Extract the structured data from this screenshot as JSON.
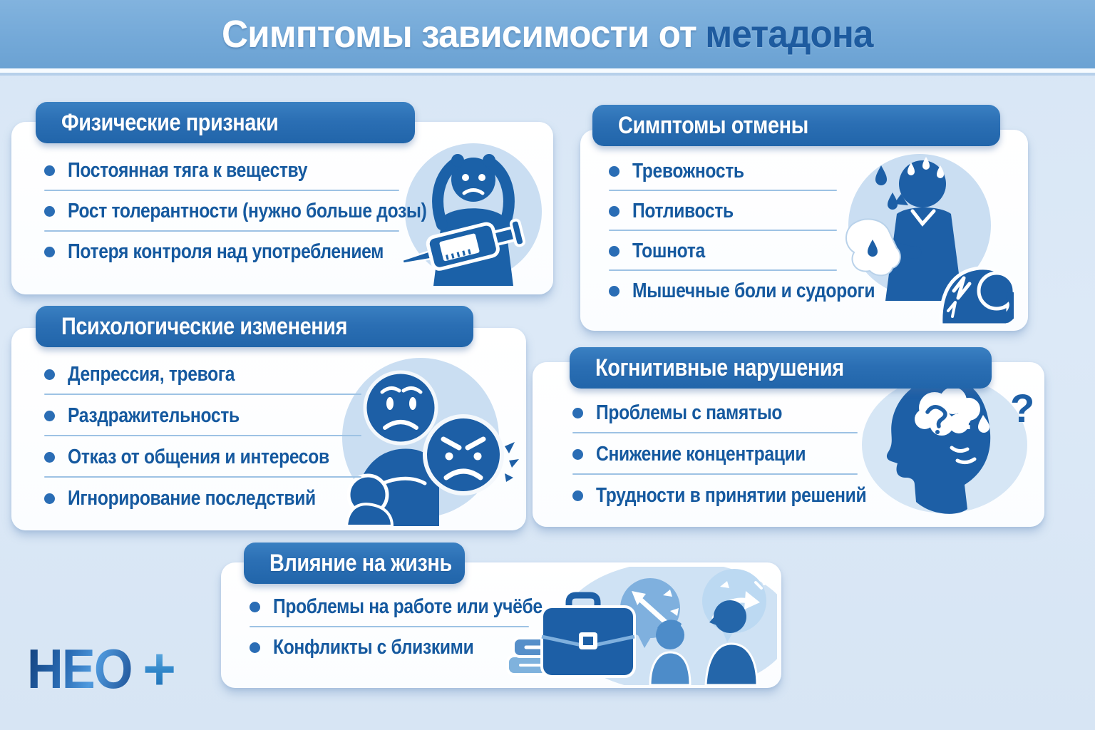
{
  "header": {
    "title_main": "Симптомы зависимости от",
    "title_accent": "метадона"
  },
  "cards": [
    {
      "title": "Физические признаки",
      "items": [
        "Постоянная тяга к веществу",
        "Рост толерантности (нужно больше дозы)",
        "Потеря контроля над употреблением"
      ],
      "icon": "person-clutching-head-with-syringe-icon"
    },
    {
      "title": "Симптомы отмены",
      "items": [
        "Тревожность",
        "Потливость",
        "Тошнота",
        "Мышечные боли и судороги"
      ],
      "icon": "sweating-nauseous-person-icon"
    },
    {
      "title": "Психологические изменения",
      "items": [
        "Депрессия, тревога",
        "Раздражительность",
        "Отказ от общения и интересов",
        "Игнорирование последствий"
      ],
      "icon": "sad-and-angry-faces-icon"
    },
    {
      "title": "Когнитивные нарушения",
      "items": [
        "Проблемы с памятыо",
        "Снижение концентрации",
        "Трудности в принятии решений"
      ],
      "icon": "head-profile-brain-question-icon",
      "qmark": "?"
    },
    {
      "title": "Влияние на жизнь",
      "items": [
        "Проблемы на работе или учёбе",
        "Конфликты с близкими"
      ],
      "icon": "briefcase-books-conflict-icon"
    }
  ],
  "logo": {
    "text": "НЕО",
    "plus": "+"
  },
  "colors": {
    "header_band": "#74a9d8",
    "accent_navy": "#1e5b9f",
    "pill_blue": "#2b6fb4",
    "item_text": "#15599f",
    "illustration_blue": "#1d5fa6",
    "light_circle": "#cadef2",
    "page_bg": "#dce9f7"
  }
}
